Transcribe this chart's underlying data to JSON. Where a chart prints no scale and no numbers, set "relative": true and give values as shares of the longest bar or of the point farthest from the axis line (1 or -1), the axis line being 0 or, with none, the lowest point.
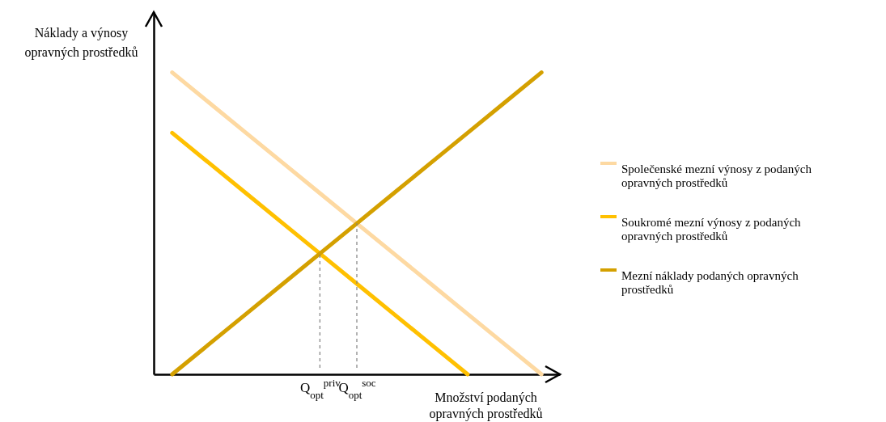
{
  "chart_data": {
    "type": "line",
    "relative": true,
    "tick_labels": "x",
    "legend": "right",
    "ylabel": "Náklady a výnosy opravných prostředků",
    "xlabel": "Množství podaných opravných prostředků",
    "ylim": [
      0,
      1.2
    ],
    "categories": [
      null,
      null,
      null,
      null,
      "Q$_{opt}$$^{priv}$",
      "Q$_{opt}$$^{soc}$",
      null,
      null,
      null,
      null,
      null
    ],
    "series": [
      {
        "name": "Společenské mezní výnosy z podaných opravných prostředků",
        "color": "#fdd9a2",
        "values": [
          1,
          0.9,
          0.8,
          0.7,
          0.6,
          0.5,
          0.4,
          0.3,
          0.2,
          0.1,
          0
        ]
      },
      {
        "name": "Soukromé mezní výnosy z podaných opravných prostředků",
        "color": "#ffc000",
        "values": [
          0.8,
          0.7,
          0.6,
          0.5,
          0.4,
          0.3,
          0.2,
          0.1,
          0,
          null,
          null
        ]
      },
      {
        "name": "Mezní náklady podaných opravných prostředků",
        "color": "#d4a000",
        "values": [
          0,
          0.1,
          0.2,
          0.3,
          0.4,
          0.5,
          0.6,
          0.7,
          0.8,
          0.9,
          1
        ]
      }
    ],
    "ref_lines": [
      {
        "axis": "x",
        "value": "Q$_{opt}$$^{priv}$",
        "color": "#808080",
        "line_style": "dashed"
      },
      {
        "axis": "x",
        "value": "Q$_{opt}$$^{soc}$",
        "color": "#808080",
        "line_style": "dashed"
      }
    ]
  }
}
